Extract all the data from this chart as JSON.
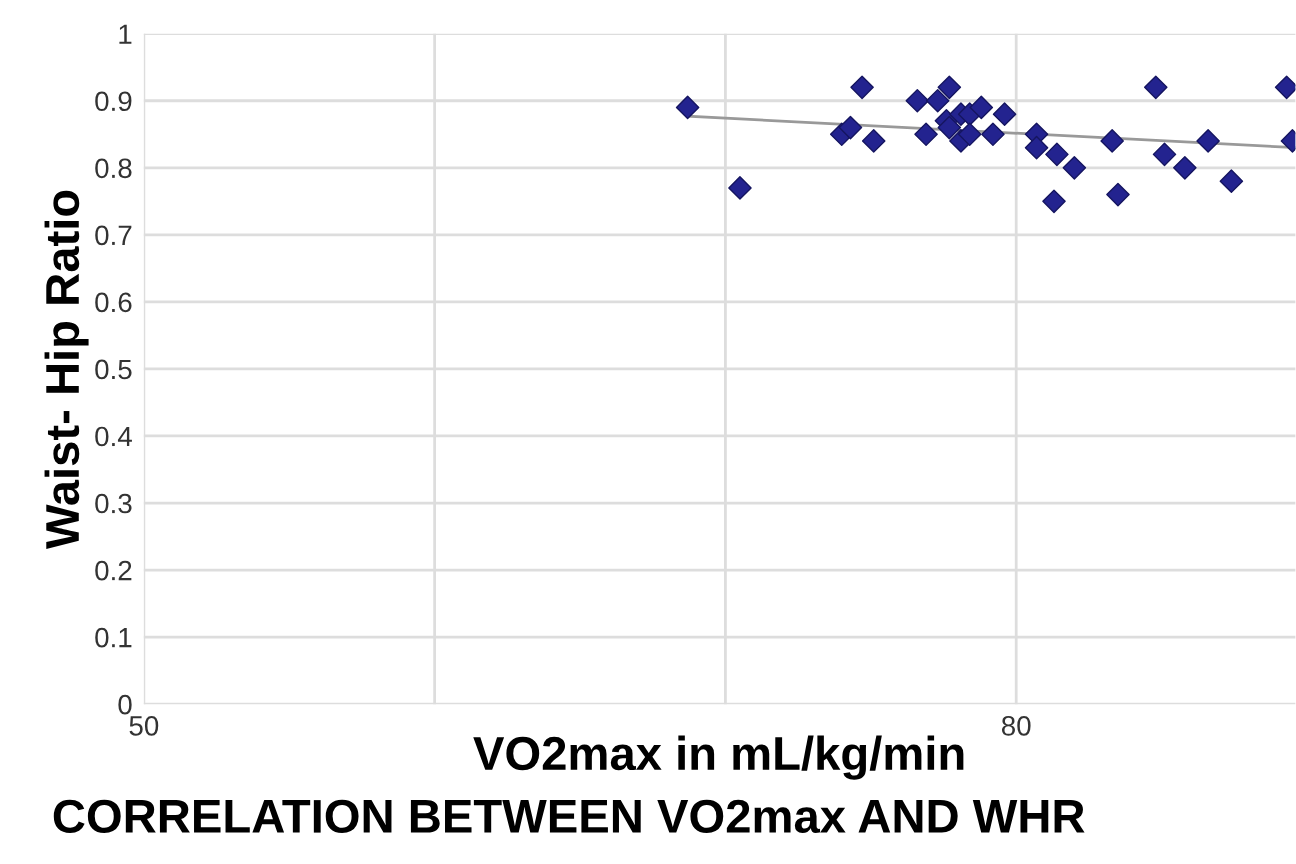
{
  "chart_data": {
    "type": "scatter",
    "title": "CORRELATION BETWEEN VO2max AND WHR",
    "xlabel": "VO2max in mL/kg/min",
    "ylabel": "Waist- Hip Ratio",
    "xlim": [
      50,
      89.6
    ],
    "xticks": [
      50,
      {
        "value": 60,
        "label": null
      },
      {
        "value": 70,
        "label": null
      },
      80
    ],
    "ylim": [
      0,
      1
    ],
    "yticks": [
      0,
      0.1,
      0.2,
      0.3,
      0.4,
      0.5,
      0.6,
      0.7,
      0.8,
      0.9,
      1
    ],
    "grid": true,
    "marker": "diamond",
    "series": [
      {
        "color": "#23238f",
        "x": [
          68.7,
          70.5,
          74.7,
          74.0,
          74.3,
          75.1,
          76.6,
          76.9,
          77.3,
          77.7,
          77.6,
          77.7,
          78.1,
          78.1,
          78.4,
          78.4,
          78.8,
          79.2,
          79.6,
          80.7,
          80.7,
          81.4,
          81.3,
          82.0,
          83.3,
          83.5,
          84.8,
          85.1,
          85.8,
          86.6,
          87.4,
          89.3,
          89.5
        ],
        "values": [
          0.89,
          0.77,
          0.92,
          0.85,
          0.86,
          0.84,
          0.9,
          0.85,
          0.9,
          0.92,
          0.87,
          0.86,
          0.88,
          0.84,
          0.88,
          0.85,
          0.89,
          0.85,
          0.88,
          0.85,
          0.83,
          0.82,
          0.75,
          0.8,
          0.84,
          0.76,
          0.92,
          0.82,
          0.8,
          0.84,
          0.78,
          0.92,
          0.84
        ]
      },
      {
        "type": "line",
        "color": "#999999",
        "marker": "none",
        "x": [
          68.7,
          89.6
        ],
        "values": [
          0.877,
          0.83
        ]
      }
    ]
  }
}
